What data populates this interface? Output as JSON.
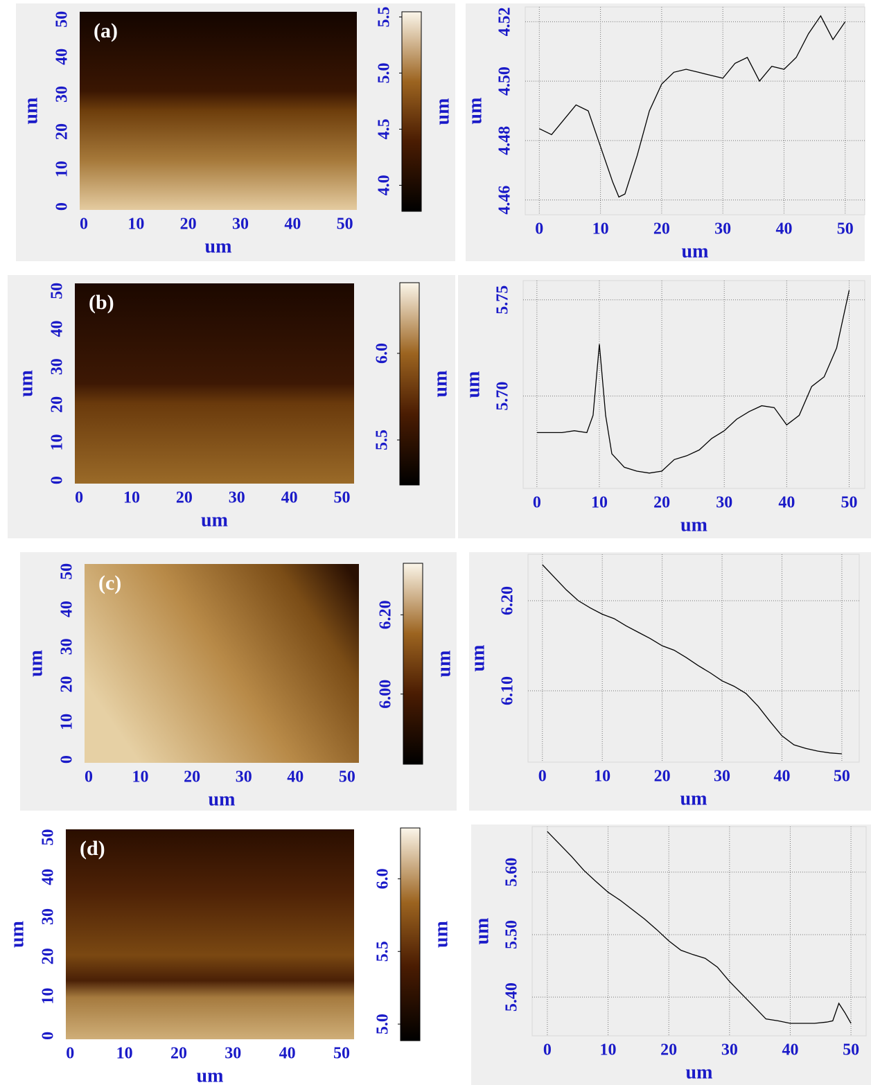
{
  "chart_data": [
    {
      "type": "image",
      "label": "(a)",
      "xlabel": "um",
      "ylabel": "um",
      "colorbar_label": "um",
      "xlim": [
        -0.8,
        52.3
      ],
      "ylim": [
        -0.9,
        52
      ],
      "xticks": [
        0,
        10,
        20,
        30,
        40,
        50
      ],
      "yticks": [
        0,
        10,
        20,
        30,
        40,
        50
      ],
      "clim": [
        3.768,
        5.546
      ],
      "cticks": [
        {
          "value": 4,
          "label": "4.0"
        },
        4.5,
        {
          "value": 5,
          "label": "5.0"
        },
        5.5
      ]
    },
    {
      "type": "line",
      "xlabel": "um",
      "ylabel": "um",
      "color": "#000000",
      "grid": true,
      "xlim": [
        -2.3,
        53.2
      ],
      "ylim": [
        4.455,
        4.525
      ],
      "xticks": [
        0,
        10,
        20,
        30,
        40,
        50
      ],
      "yticks": [
        4.46,
        4.48,
        {
          "value": 4.5,
          "label": "4.50"
        },
        4.52
      ],
      "x": [
        0,
        2,
        4,
        6,
        8,
        10,
        12,
        13,
        14,
        16,
        18,
        20,
        22,
        24,
        26,
        28,
        30,
        32,
        34,
        36,
        38,
        40,
        42,
        44,
        46,
        48,
        50
      ],
      "values": [
        4.484,
        4.482,
        4.487,
        4.492,
        4.49,
        4.478,
        4.466,
        4.461,
        4.462,
        4.475,
        4.49,
        4.499,
        4.503,
        4.504,
        4.503,
        4.502,
        4.501,
        4.506,
        4.508,
        4.5,
        4.505,
        4.504,
        4.508,
        4.516,
        4.522,
        4.514,
        4.52
      ]
    },
    {
      "type": "image",
      "label": "(b)",
      "xlabel": "um",
      "ylabel": "um",
      "colorbar_label": "um",
      "xlim": [
        -0.8,
        52.3
      ],
      "ylim": [
        -0.9,
        52
      ],
      "xticks": [
        0,
        10,
        20,
        30,
        40,
        50
      ],
      "yticks": [
        0,
        10,
        20,
        30,
        40,
        50
      ],
      "clim": [
        5.24,
        6.408
      ],
      "cticks": [
        5.5,
        {
          "value": 6,
          "label": "6.0"
        }
      ]
    },
    {
      "type": "line",
      "xlabel": "um",
      "ylabel": "um",
      "color": "#000000",
      "grid": true,
      "xlim": [
        -2.2,
        52.5
      ],
      "ylim": [
        5.652,
        5.76
      ],
      "xticks": [
        0,
        10,
        20,
        30,
        40,
        50
      ],
      "yticks": [
        {
          "value": 5.7,
          "label": "5.70"
        },
        5.75
      ],
      "x": [
        0,
        2,
        4,
        6,
        8,
        9,
        10,
        11,
        12,
        14,
        16,
        18,
        20,
        22,
        24,
        26,
        28,
        30,
        32,
        34,
        36,
        38,
        40,
        42,
        44,
        46,
        48,
        50
      ],
      "values": [
        5.681,
        5.681,
        5.681,
        5.682,
        5.681,
        5.69,
        5.727,
        5.69,
        5.67,
        5.663,
        5.661,
        5.66,
        5.661,
        5.667,
        5.669,
        5.672,
        5.678,
        5.682,
        5.688,
        5.692,
        5.695,
        5.694,
        5.685,
        5.69,
        5.705,
        5.71,
        5.725,
        5.755
      ]
    },
    {
      "type": "image",
      "label": "(c)",
      "xlabel": "um",
      "ylabel": "um",
      "colorbar_label": "um",
      "xlim": [
        -0.8,
        52.3
      ],
      "ylim": [
        -0.9,
        52
      ],
      "xticks": [
        0,
        10,
        20,
        30,
        40,
        50
      ],
      "yticks": [
        0,
        10,
        20,
        30,
        40,
        50
      ],
      "clim": [
        5.823,
        6.33
      ],
      "cticks": [
        {
          "value": 6,
          "label": "6.00"
        },
        {
          "value": 6.2,
          "label": "6.20"
        }
      ]
    },
    {
      "type": "line",
      "xlabel": "um",
      "ylabel": "um",
      "color": "#000000",
      "grid": true,
      "xlim": [
        -2.4,
        52.9
      ],
      "ylim": [
        6.0208,
        6.2515
      ],
      "xticks": [
        0,
        10,
        20,
        30,
        40,
        50
      ],
      "yticks": [
        {
          "value": 6.1,
          "label": "6.10"
        },
        {
          "value": 6.2,
          "label": "6.20"
        }
      ],
      "x": [
        0,
        2,
        4,
        6,
        8,
        10,
        12,
        14,
        16,
        18,
        20,
        22,
        24,
        26,
        28,
        30,
        32,
        34,
        36,
        38,
        40,
        42,
        44,
        46,
        48,
        50
      ],
      "values": [
        6.24,
        6.226,
        6.212,
        6.2,
        6.192,
        6.185,
        6.18,
        6.172,
        6.165,
        6.158,
        6.15,
        6.145,
        6.137,
        6.128,
        6.12,
        6.111,
        6.105,
        6.097,
        6.083,
        6.066,
        6.05,
        6.04,
        6.036,
        6.033,
        6.031,
        6.03
      ]
    },
    {
      "type": "image",
      "label": "(d)",
      "xlabel": "um",
      "ylabel": "um",
      "colorbar_label": "um",
      "xlim": [
        -0.8,
        52.3
      ],
      "ylim": [
        -0.9,
        52
      ],
      "xticks": [
        0,
        10,
        20,
        30,
        40,
        50
      ],
      "yticks": [
        0,
        10,
        20,
        30,
        40,
        50
      ],
      "clim": [
        4.886,
        6.35
      ],
      "cticks": [
        {
          "value": 5,
          "label": "5.0"
        },
        5.5,
        {
          "value": 6,
          "label": "6.0"
        }
      ]
    },
    {
      "type": "line",
      "xlabel": "um",
      "ylabel": "um",
      "color": "#000000",
      "grid": true,
      "xlim": [
        -2.5,
        52.5
      ],
      "ylim": [
        5.338,
        5.673
      ],
      "xticks": [
        0,
        10,
        20,
        30,
        40,
        50
      ],
      "yticks": [
        {
          "value": 5.4,
          "label": "5.40"
        },
        {
          "value": 5.5,
          "label": "5.50"
        },
        {
          "value": 5.6,
          "label": "5.60"
        }
      ],
      "x": [
        0,
        2,
        4,
        6,
        8,
        10,
        12,
        14,
        16,
        18,
        20,
        22,
        24,
        26,
        28,
        30,
        32,
        34,
        36,
        38,
        40,
        42,
        44,
        46,
        47,
        48,
        49,
        50
      ],
      "values": [
        5.665,
        5.645,
        5.625,
        5.603,
        5.585,
        5.568,
        5.555,
        5.54,
        5.525,
        5.508,
        5.49,
        5.475,
        5.468,
        5.462,
        5.448,
        5.425,
        5.405,
        5.385,
        5.365,
        5.362,
        5.358,
        5.358,
        5.358,
        5.36,
        5.362,
        5.39,
        5.375,
        5.358
      ]
    }
  ]
}
